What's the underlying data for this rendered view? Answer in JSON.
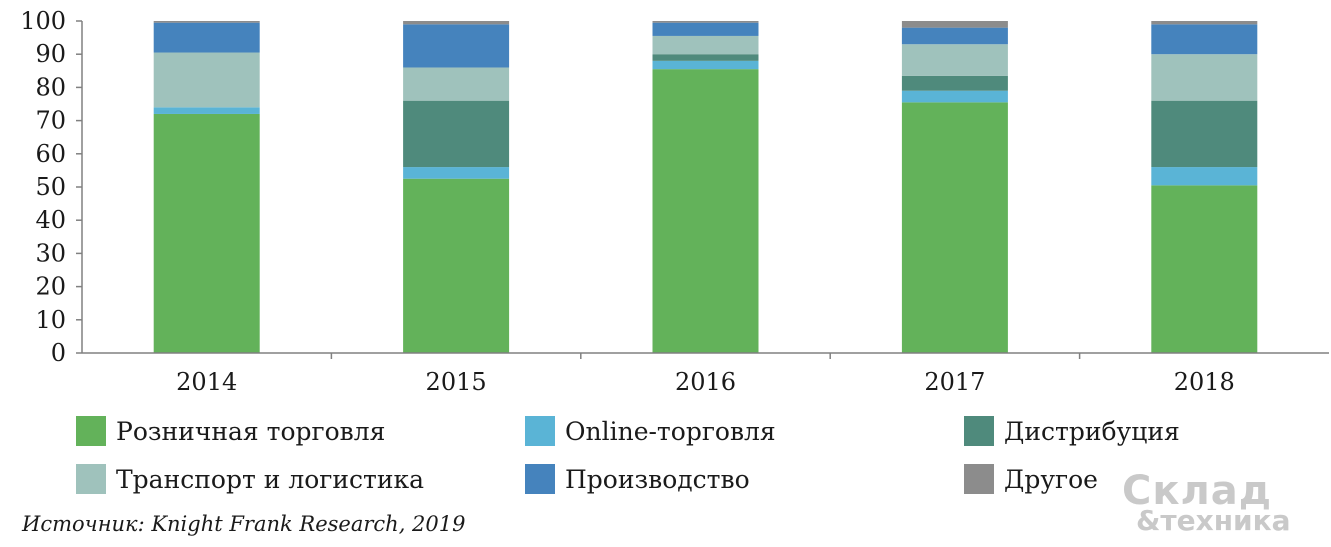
{
  "chart_data": {
    "type": "bar",
    "stacked": true,
    "categories": [
      "2014",
      "2015",
      "2016",
      "2017",
      "2018"
    ],
    "series": [
      {
        "name": "Розничная торговля",
        "color": "#63b25a",
        "values": [
          72,
          52.5,
          85.5,
          75.5,
          50.5
        ]
      },
      {
        "name": "Online-торговля",
        "color": "#5ab4d6",
        "values": [
          2,
          3.5,
          2.5,
          3.5,
          5.5
        ]
      },
      {
        "name": "Дистрибуция",
        "color": "#4f8a7c",
        "values": [
          0,
          20,
          2,
          4.5,
          20
        ]
      },
      {
        "name": "Транспорт и логистика",
        "color": "#9fc2bc",
        "values": [
          16.5,
          10,
          5.5,
          9.5,
          14
        ]
      },
      {
        "name": "Производство",
        "color": "#4583bd",
        "values": [
          9,
          13,
          4,
          5,
          9
        ]
      },
      {
        "name": "Другое",
        "color": "#8c8c8c",
        "values": [
          0.5,
          1,
          0.5,
          2,
          1
        ]
      }
    ],
    "ylim": [
      0,
      100
    ],
    "yticks": [
      "0",
      "10",
      "20",
      "30",
      "40",
      "50",
      "60",
      "70",
      "80",
      "90",
      "100"
    ],
    "grid": false,
    "legend_position": "bottom"
  },
  "source": "Источник: Knight Frank Research, 2019",
  "logo": {
    "line1": "Склад",
    "line2": "&техника"
  }
}
